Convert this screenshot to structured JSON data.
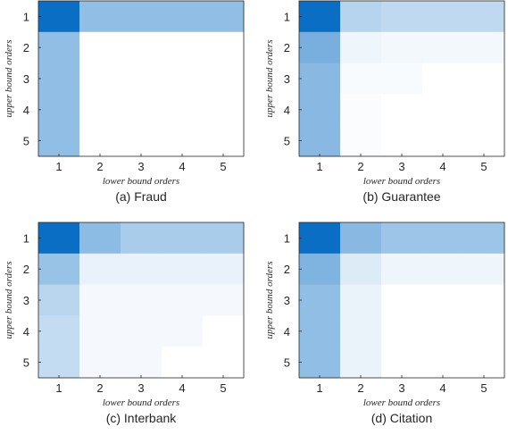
{
  "chart_data": [
    {
      "type": "heatmap",
      "caption": "(a) Fraud",
      "xlabel": "lower bound orders",
      "ylabel": "upper bound orders",
      "x_ticks": [
        "1",
        "2",
        "3",
        "4",
        "5"
      ],
      "y_ticks": [
        "1",
        "2",
        "3",
        "4",
        "5"
      ],
      "colormap": "white-to-blue",
      "values": [
        [
          1.0,
          0.45,
          0.45,
          0.45,
          0.45
        ],
        [
          0.45,
          0.0,
          0.0,
          0.0,
          0.0
        ],
        [
          0.45,
          0.0,
          0.0,
          0.0,
          0.0
        ],
        [
          0.45,
          0.0,
          0.0,
          0.0,
          0.0
        ],
        [
          0.45,
          0.0,
          0.0,
          0.0,
          0.0
        ]
      ]
    },
    {
      "type": "heatmap",
      "caption": "(b) Guarantee",
      "xlabel": "lower bound orders",
      "ylabel": "upper bound orders",
      "x_ticks": [
        "1",
        "2",
        "3",
        "4",
        "5"
      ],
      "y_ticks": [
        "1",
        "2",
        "3",
        "4",
        "5"
      ],
      "colormap": "white-to-blue",
      "values": [
        [
          1.0,
          0.3,
          0.26,
          0.26,
          0.26
        ],
        [
          0.55,
          0.07,
          0.05,
          0.05,
          0.05
        ],
        [
          0.48,
          0.03,
          0.03,
          0.0,
          0.0
        ],
        [
          0.48,
          0.02,
          0.0,
          0.0,
          0.0
        ],
        [
          0.48,
          0.02,
          0.0,
          0.0,
          0.0
        ]
      ]
    },
    {
      "type": "heatmap",
      "caption": "(c) Interbank",
      "xlabel": "lower bound orders",
      "ylabel": "upper bound orders",
      "x_ticks": [
        "1",
        "2",
        "3",
        "4",
        "5"
      ],
      "y_ticks": [
        "1",
        "2",
        "3",
        "4",
        "5"
      ],
      "colormap": "white-to-blue",
      "values": [
        [
          1.0,
          0.47,
          0.35,
          0.35,
          0.35
        ],
        [
          0.42,
          0.09,
          0.09,
          0.09,
          0.09
        ],
        [
          0.28,
          0.04,
          0.04,
          0.04,
          0.04
        ],
        [
          0.24,
          0.04,
          0.04,
          0.04,
          0.0
        ],
        [
          0.24,
          0.04,
          0.04,
          0.0,
          0.0
        ]
      ]
    },
    {
      "type": "heatmap",
      "caption": "(d) Citation",
      "xlabel": "lower bound orders",
      "ylabel": "upper bound orders",
      "x_ticks": [
        "1",
        "2",
        "3",
        "4",
        "5"
      ],
      "y_ticks": [
        "1",
        "2",
        "3",
        "4",
        "5"
      ],
      "colormap": "white-to-blue",
      "values": [
        [
          1.0,
          0.48,
          0.4,
          0.4,
          0.4
        ],
        [
          0.52,
          0.14,
          0.07,
          0.07,
          0.07
        ],
        [
          0.45,
          0.08,
          0.0,
          0.0,
          0.0
        ],
        [
          0.45,
          0.08,
          0.0,
          0.0,
          0.0
        ],
        [
          0.45,
          0.08,
          0.0,
          0.0,
          0.0
        ]
      ]
    }
  ],
  "colors": {
    "max": "#0a6ec4",
    "min": "#ffffff",
    "axis": "#262626"
  }
}
